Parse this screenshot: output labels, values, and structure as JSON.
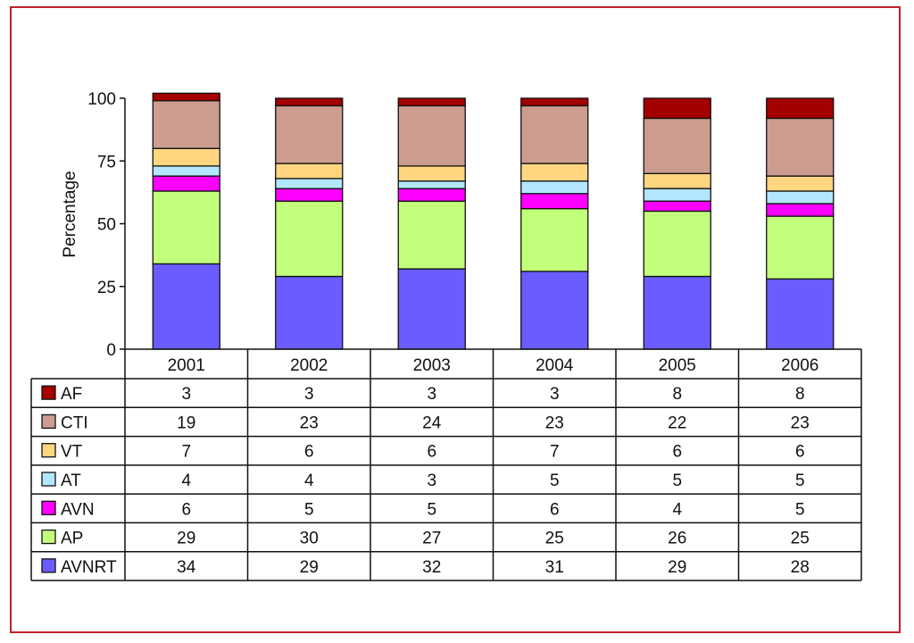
{
  "chart_data": {
    "type": "bar",
    "stacked": true,
    "title": "",
    "xlabel": "",
    "ylabel": "Percentage",
    "ylim": [
      0,
      100
    ],
    "yticks": [
      0,
      25,
      50,
      75,
      100
    ],
    "categories": [
      "2001",
      "2002",
      "2003",
      "2004",
      "2005",
      "2006"
    ],
    "series": [
      {
        "name": "AVNRT",
        "color": "#6a5cff",
        "values": [
          34,
          29,
          32,
          31,
          29,
          28
        ]
      },
      {
        "name": "AP",
        "color": "#c2ff7a",
        "values": [
          29,
          30,
          27,
          25,
          26,
          25
        ]
      },
      {
        "name": "AVN",
        "color": "#ff00ff",
        "values": [
          6,
          5,
          5,
          6,
          4,
          5
        ]
      },
      {
        "name": "AT",
        "color": "#b3e6ff",
        "values": [
          4,
          4,
          3,
          5,
          5,
          5
        ]
      },
      {
        "name": "VT",
        "color": "#ffd580",
        "values": [
          7,
          6,
          6,
          7,
          6,
          6
        ]
      },
      {
        "name": "CTI",
        "color": "#cc9c90",
        "values": [
          19,
          23,
          24,
          23,
          22,
          23
        ]
      },
      {
        "name": "AF",
        "color": "#a30000",
        "values": [
          3,
          3,
          3,
          3,
          8,
          8
        ]
      }
    ],
    "table_row_order": [
      "AF",
      "CTI",
      "VT",
      "AT",
      "AVN",
      "AP",
      "AVNRT"
    ],
    "legend_position": "table-left",
    "grid": false
  },
  "frame_color": "#c0202a"
}
